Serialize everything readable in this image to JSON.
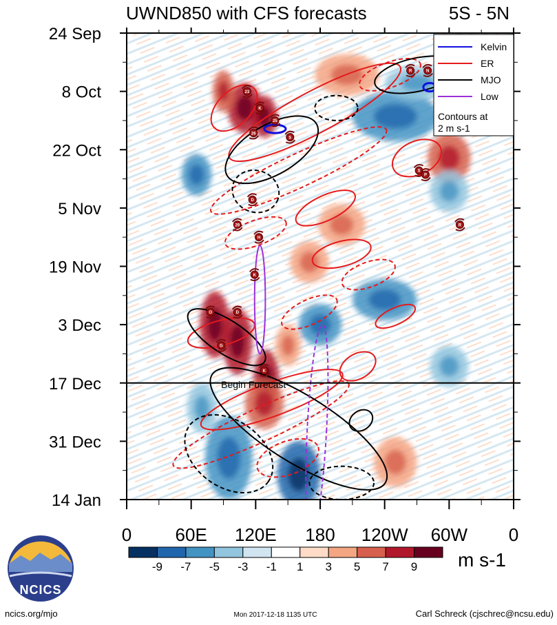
{
  "chart_data": {
    "type": "heatmap",
    "title": "UWND850 with CFS forecasts",
    "region": "5S - 5N",
    "variable": "850 hPa zonal wind anomaly",
    "x_axis": {
      "ticks": [
        "0",
        "60E",
        "120E",
        "180",
        "120W",
        "60W",
        "0"
      ],
      "tick_values": [
        0,
        60,
        120,
        180,
        240,
        300,
        360
      ],
      "range": [
        0,
        360
      ]
    },
    "y_axis": {
      "ticks": [
        "24 Sep",
        "8 Oct",
        "22 Oct",
        "5 Nov",
        "19 Nov",
        "3 Dec",
        "17 Dec",
        "31 Dec",
        "14 Jan"
      ],
      "tick_days": [
        0,
        14,
        28,
        42,
        56,
        70,
        84,
        98,
        112
      ],
      "range_days": [
        0,
        112
      ]
    },
    "forecast_start": {
      "label": "Begin Forecast",
      "day": 84
    },
    "colorbar": {
      "labels": [
        "-9",
        "-7",
        "-5",
        "-3",
        "-1",
        "1",
        "3",
        "5",
        "7",
        "9"
      ],
      "colors": [
        "#053061",
        "#2166ac",
        "#4393c3",
        "#92c5de",
        "#d1e5f0",
        "#ffffff",
        "#fddbc7",
        "#f4a582",
        "#d6604d",
        "#b2182b",
        "#67001f"
      ],
      "unit": "m s-1"
    },
    "legend": {
      "entries": [
        {
          "label": "Kelvin",
          "color": "#1010e0"
        },
        {
          "label": "ER",
          "color": "#e41a1c"
        },
        {
          "label": "MJO",
          "color": "#000000"
        },
        {
          "label": "Low",
          "color": "#9b30d9"
        }
      ],
      "note_line1": "Contours at",
      "note_line2": "2 m s-1",
      "placement": "top-right"
    },
    "positive_anomalies": [
      {
        "lon": 110,
        "day": 18,
        "dlon": 16,
        "dday": 6,
        "value": 8
      },
      {
        "lon": 128,
        "day": 20,
        "dlon": 12,
        "dday": 5,
        "value": 9
      },
      {
        "lon": 90,
        "day": 14,
        "dlon": 10,
        "dday": 5,
        "value": 6
      },
      {
        "lon": 205,
        "day": 10,
        "dlon": 30,
        "dday": 5,
        "value": 5
      },
      {
        "lon": 300,
        "day": 30,
        "dlon": 20,
        "dday": 6,
        "value": 6
      },
      {
        "lon": 82,
        "day": 70,
        "dlon": 14,
        "dday": 8,
        "value": 8
      },
      {
        "lon": 103,
        "day": 74,
        "dlon": 14,
        "dday": 8,
        "value": 8
      },
      {
        "lon": 130,
        "day": 83,
        "dlon": 12,
        "dday": 7,
        "value": 9
      },
      {
        "lon": 128,
        "day": 89,
        "dlon": 18,
        "dday": 6,
        "value": 7
      },
      {
        "lon": 150,
        "day": 75,
        "dlon": 12,
        "dday": 5,
        "value": 5
      },
      {
        "lon": 250,
        "day": 103,
        "dlon": 20,
        "dday": 6,
        "value": 5
      },
      {
        "lon": 170,
        "day": 55,
        "dlon": 18,
        "dday": 5,
        "value": 4
      },
      {
        "lon": 200,
        "day": 46,
        "dlon": 22,
        "dday": 5,
        "value": 4
      }
    ],
    "negative_anomalies": [
      {
        "lon": 250,
        "day": 20,
        "dlon": 40,
        "dday": 6,
        "value": -5
      },
      {
        "lon": 270,
        "day": 12,
        "dlon": 30,
        "dday": 4,
        "value": -4
      },
      {
        "lon": 65,
        "day": 34,
        "dlon": 14,
        "dday": 5,
        "value": -5
      },
      {
        "lon": 180,
        "day": 70,
        "dlon": 20,
        "dday": 5,
        "value": -6
      },
      {
        "lon": 240,
        "day": 64,
        "dlon": 30,
        "dday": 5,
        "value": -5
      },
      {
        "lon": 300,
        "day": 38,
        "dlon": 18,
        "dday": 5,
        "value": -4
      },
      {
        "lon": 95,
        "day": 102,
        "dlon": 22,
        "dday": 10,
        "value": -6
      },
      {
        "lon": 160,
        "day": 106,
        "dlon": 20,
        "dday": 8,
        "value": -7
      },
      {
        "lon": 70,
        "day": 90,
        "dlon": 14,
        "dday": 6,
        "value": -4
      },
      {
        "lon": 300,
        "day": 80,
        "dlon": 18,
        "dday": 5,
        "value": -3
      }
    ],
    "storms": [
      {
        "id": "23",
        "lon": 112,
        "day": 14
      },
      {
        "id": "K",
        "lon": 124,
        "day": 18
      },
      {
        "id": "25",
        "lon": 138,
        "day": 21
      },
      {
        "id": "26",
        "lon": 118,
        "day": 24
      },
      {
        "id": "S",
        "lon": 152,
        "day": 25
      },
      {
        "id": "R",
        "lon": 264,
        "day": 9
      },
      {
        "id": "N",
        "lon": 280,
        "day": 9
      },
      {
        "id": "S",
        "lon": 272,
        "day": 33
      },
      {
        "id": "P",
        "lon": 278,
        "day": 34
      },
      {
        "id": "D",
        "lon": 117,
        "day": 40
      },
      {
        "id": "29",
        "lon": 103,
        "day": 46
      },
      {
        "id": "H",
        "lon": 123,
        "day": 49
      },
      {
        "id": "R",
        "lon": 310,
        "day": 46
      },
      {
        "id": "K",
        "lon": 119,
        "day": 58
      },
      {
        "id": "O",
        "lon": 78,
        "day": 67
      },
      {
        "id": "D",
        "lon": 103,
        "day": 67
      },
      {
        "id": "G",
        "lon": 88,
        "day": 75
      },
      {
        "id": "K",
        "lon": 128,
        "day": 81
      }
    ],
    "mjo_contours": [
      {
        "style": "solid",
        "lon": 135,
        "day": 28,
        "dlon": 48,
        "dday": 6,
        "angle": -30
      },
      {
        "style": "solid",
        "lon": 270,
        "day": 10,
        "dlon": 40,
        "dday": 4,
        "angle": -12
      },
      {
        "style": "solid",
        "lon": 160,
        "day": 95,
        "dlon": 95,
        "dday": 8,
        "angle": 32
      },
      {
        "style": "solid",
        "lon": 93,
        "day": 73,
        "dlon": 42,
        "dday": 4,
        "angle": 33
      },
      {
        "style": "solid",
        "lon": 218,
        "day": 93,
        "dlon": 9,
        "dday": 3,
        "angle": 55
      },
      {
        "style": "dashed",
        "lon": 195,
        "day": 18,
        "dlon": 20,
        "dday": 3,
        "angle": 0
      },
      {
        "style": "dashed",
        "lon": 120,
        "day": 38,
        "dlon": 22,
        "dday": 5,
        "angle": 20
      },
      {
        "style": "dashed",
        "lon": 95,
        "day": 101,
        "dlon": 45,
        "dday": 8,
        "angle": 35
      },
      {
        "style": "dashed",
        "lon": 200,
        "day": 108,
        "dlon": 30,
        "dday": 4,
        "angle": 0
      }
    ],
    "er_contours": [
      {
        "style": "solid",
        "lon": 175,
        "day": 19,
        "dlon": 90,
        "dday": 5,
        "angle": -28
      },
      {
        "style": "solid",
        "lon": 100,
        "day": 18,
        "dlon": 26,
        "dday": 4,
        "angle": -45
      },
      {
        "style": "solid",
        "lon": 270,
        "day": 30,
        "dlon": 24,
        "dday": 4,
        "angle": -25
      },
      {
        "style": "solid",
        "lon": 185,
        "day": 42,
        "dlon": 30,
        "dday": 3,
        "angle": -25
      },
      {
        "style": "solid",
        "lon": 200,
        "day": 53,
        "dlon": 28,
        "dday": 3,
        "angle": -15
      },
      {
        "style": "solid",
        "lon": 88,
        "day": 72,
        "dlon": 32,
        "dday": 3,
        "angle": -15
      },
      {
        "style": "solid",
        "lon": 135,
        "day": 88,
        "dlon": 70,
        "dday": 4,
        "angle": -20
      },
      {
        "style": "solid",
        "lon": 250,
        "day": 68,
        "dlon": 20,
        "dday": 2,
        "angle": -25
      },
      {
        "style": "solid",
        "lon": 215,
        "day": 80,
        "dlon": 18,
        "dday": 3,
        "angle": -30
      },
      {
        "style": "dashed",
        "lon": 160,
        "day": 33,
        "dlon": 90,
        "dday": 4,
        "angle": -25
      },
      {
        "style": "dashed",
        "lon": 245,
        "day": 10,
        "dlon": 30,
        "dday": 3,
        "angle": -20
      },
      {
        "style": "dashed",
        "lon": 125,
        "day": 94,
        "dlon": 90,
        "dday": 4,
        "angle": -25
      },
      {
        "style": "dashed",
        "lon": 150,
        "day": 102,
        "dlon": 30,
        "dday": 4,
        "angle": -20
      },
      {
        "style": "dashed",
        "lon": 170,
        "day": 67,
        "dlon": 28,
        "dday": 3,
        "angle": -25
      },
      {
        "style": "dashed",
        "lon": 225,
        "day": 58,
        "dlon": 26,
        "dday": 3,
        "angle": -20
      },
      {
        "style": "dashed",
        "lon": 120,
        "day": 48,
        "dlon": 30,
        "dday": 3,
        "angle": -20
      }
    ],
    "kelvin_contours": [
      {
        "lon": 138,
        "day": 23,
        "dlon": 10,
        "dday": 1,
        "angle": 0
      },
      {
        "lon": 282,
        "day": 13,
        "dlon": 6,
        "dday": 1,
        "angle": 0
      }
    ],
    "low_contours": [
      {
        "style": "solid",
        "lon": 124,
        "day": 64,
        "dlon": 5,
        "dday": 13,
        "angle": 0
      },
      {
        "style": "dashed",
        "lon": 177,
        "day": 95,
        "dlon": 9,
        "dday": 25,
        "angle": 3
      }
    ]
  },
  "footer": {
    "url": "ncics.org/mjo",
    "timestamp": "Mon 2017-12-18 1135 UTC",
    "credit": "Carl Schreck (cjschrec@ncsu.edu)",
    "logo_text": "NCICS"
  }
}
